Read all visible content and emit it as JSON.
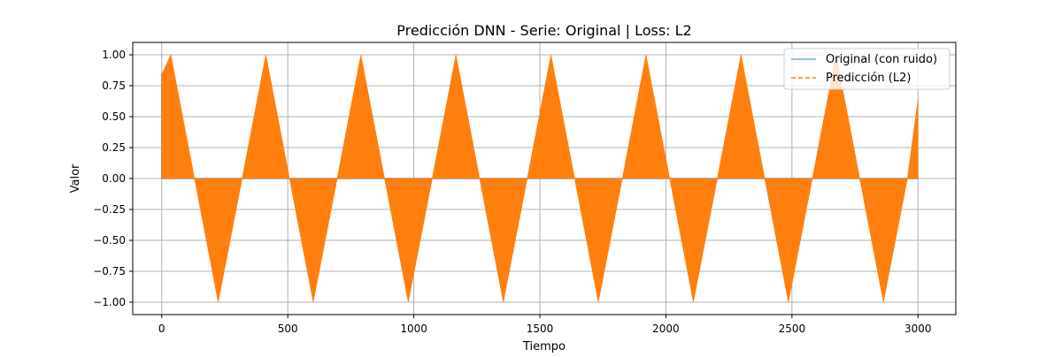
{
  "chart_data": {
    "type": "line",
    "title": "Predicción DNN - Serie: Original | Loss: L2",
    "xlabel": "Tiempo",
    "ylabel": "Valor",
    "xlim": [
      -115,
      3150
    ],
    "ylim": [
      -1.1,
      1.1
    ],
    "xticks": [
      0,
      500,
      1000,
      1500,
      2000,
      2500,
      3000
    ],
    "yticks": [
      -1.0,
      -0.75,
      -0.5,
      -0.25,
      0.0,
      0.25,
      0.5,
      0.75,
      1.0
    ],
    "xtick_labels": [
      "0",
      "500",
      "1000",
      "1500",
      "2000",
      "2500",
      "3000"
    ],
    "ytick_labels": [
      "−1.00",
      "−0.75",
      "−0.50",
      "−0.25",
      "0.00",
      "0.25",
      "0.50",
      "0.75",
      "1.00"
    ],
    "grid": true,
    "legend_position": "top-right",
    "series": [
      {
        "name": "Original (con ruido)",
        "color": "#1f77b4",
        "style": "solid",
        "alpha": 0.6,
        "start_value": 0.85,
        "x_range": [
          0,
          3000
        ],
        "baseline": 0.0,
        "envelope": "positive half of sine, period ≈ 377, amplitude ≈ 1"
      },
      {
        "name": "Predicción (L2)",
        "color": "#ff7f0e",
        "style": "dashed",
        "x_range": [
          0,
          3000
        ],
        "baseline": 0.0,
        "amplitude": 1.0,
        "period": 377,
        "envelope_note": "densely oscillating between 0 and a sine envelope",
        "envelope_points": [
          {
            "x": 0,
            "y": 0.84
          },
          {
            "x": 36,
            "y": 1.0
          },
          {
            "x": 130,
            "y": 0.0
          },
          {
            "x": 224,
            "y": -1.0
          },
          {
            "x": 319,
            "y": 0.0
          },
          {
            "x": 413,
            "y": 1.0
          },
          {
            "x": 507,
            "y": 0.0
          },
          {
            "x": 601,
            "y": -1.0
          },
          {
            "x": 696,
            "y": 0.0
          },
          {
            "x": 790,
            "y": 1.0
          },
          {
            "x": 884,
            "y": 0.0
          },
          {
            "x": 978,
            "y": -1.0
          },
          {
            "x": 1073,
            "y": 0.0
          },
          {
            "x": 1167,
            "y": 1.0
          },
          {
            "x": 1261,
            "y": 0.0
          },
          {
            "x": 1355,
            "y": -1.0
          },
          {
            "x": 1450,
            "y": 0.0
          },
          {
            "x": 1544,
            "y": 1.0
          },
          {
            "x": 1638,
            "y": 0.0
          },
          {
            "x": 1732,
            "y": -1.0
          },
          {
            "x": 1827,
            "y": 0.0
          },
          {
            "x": 1921,
            "y": 1.0
          },
          {
            "x": 2015,
            "y": 0.0
          },
          {
            "x": 2109,
            "y": -1.0
          },
          {
            "x": 2204,
            "y": 0.0
          },
          {
            "x": 2298,
            "y": 1.0
          },
          {
            "x": 2392,
            "y": 0.0
          },
          {
            "x": 2486,
            "y": -1.0
          },
          {
            "x": 2581,
            "y": 0.0
          },
          {
            "x": 2675,
            "y": 1.0
          },
          {
            "x": 2769,
            "y": 0.0
          },
          {
            "x": 2863,
            "y": -1.0
          },
          {
            "x": 2958,
            "y": 0.0
          },
          {
            "x": 3000,
            "y": 0.64
          }
        ]
      }
    ]
  }
}
